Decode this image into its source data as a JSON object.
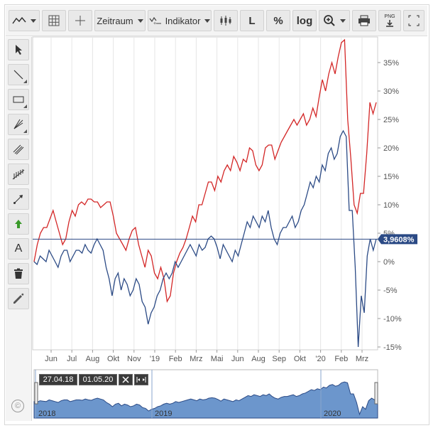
{
  "toolbar": {
    "chart_type_icon": "line-chart-icon",
    "grid_icon": "grid-icon",
    "crosshair_icon": "crosshair-icon",
    "zeitraum_label": "Zeitraum",
    "indikator_label": "Indikator",
    "candles_icon": "candlestick-icon",
    "l_label": "L",
    "percent_label": "%",
    "log_label": "log",
    "zoom_icon": "zoom-icon",
    "print_icon": "print-icon",
    "png_label": "PNG",
    "fullscreen_icon": "fullscreen-icon"
  },
  "sidebar": {
    "items": [
      {
        "icon": "cursor-icon"
      },
      {
        "icon": "line-tool-icon"
      },
      {
        "icon": "rectangle-tool-icon"
      },
      {
        "icon": "fan-tool-icon"
      },
      {
        "icon": "channel-tool-icon"
      },
      {
        "icon": "fibonacci-tool-icon"
      },
      {
        "icon": "arrow-tool-icon"
      },
      {
        "icon": "up-arrow-icon"
      },
      {
        "icon": "text-tool-icon",
        "label": "A"
      },
      {
        "icon": "trash-icon"
      },
      {
        "icon": "pencil-icon"
      }
    ],
    "copyright": "©"
  },
  "navigator": {
    "from_date": "27.04.18",
    "to_date": "01.05.20",
    "year_labels": [
      "2018",
      "2019",
      "2020"
    ]
  },
  "chart_data": {
    "type": "line",
    "x_labels": [
      "Jun",
      "Jul",
      "Aug",
      "Okt",
      "Nov",
      "'19",
      "Feb",
      "Mrz",
      "Mai",
      "Jun",
      "Aug",
      "Sep",
      "Okt",
      "'20",
      "Feb",
      "Mrz"
    ],
    "y_ticks": [
      "35%",
      "30%",
      "25%",
      "20%",
      "15%",
      "10%",
      "5%",
      "0%",
      "-5%",
      "-10%",
      "-15%"
    ],
    "ylim": [
      -15.5,
      39.5
    ],
    "current_value_label": "3,9608%",
    "current_value": 3.9608,
    "grid": "vertical",
    "series": [
      {
        "color": "#d32626",
        "values": [
          0,
          3,
          5,
          6,
          6,
          7.5,
          9,
          7,
          5,
          3,
          4,
          7,
          9,
          8,
          10,
          10.5,
          10,
          11,
          11,
          10.5,
          10.5,
          9.5,
          10,
          10.5,
          10.5,
          8,
          5,
          4,
          3,
          2,
          4,
          5.5,
          6,
          3,
          1,
          -1,
          2,
          1,
          -2,
          -3,
          -1,
          -3,
          -7,
          -6,
          -2,
          0,
          1.5,
          2.5,
          4,
          6,
          8,
          7,
          10,
          10,
          12,
          14,
          14,
          12.5,
          15,
          14,
          16,
          17,
          16,
          18.5,
          17.5,
          16,
          18,
          17.5,
          20,
          19.5,
          17,
          16,
          17,
          20,
          20.5,
          20.5,
          18,
          19.5,
          21,
          22,
          23,
          24,
          25,
          24,
          25,
          26,
          24,
          25,
          27,
          25.5,
          29,
          32,
          30,
          33,
          35,
          33,
          36,
          38.5,
          39,
          25,
          18,
          10,
          8.5,
          12,
          12,
          19,
          28,
          26,
          28
        ]
      },
      {
        "color": "#2b4a85",
        "values": [
          0,
          -0.5,
          1,
          0.5,
          0,
          2,
          1,
          0,
          -1,
          1,
          2,
          2,
          0,
          1,
          2,
          2,
          1.5,
          3,
          2,
          1.5,
          3,
          4,
          3,
          2,
          -1,
          -3,
          -6,
          -3,
          -2,
          -5,
          -3,
          -4,
          -6,
          -5,
          -3,
          -4,
          -7,
          -8,
          -11,
          -9,
          -8,
          -6,
          -5,
          -3,
          -2,
          -3,
          -2,
          0,
          -1,
          0,
          1,
          2,
          3,
          2,
          1,
          3,
          2,
          2.5,
          4,
          4.5,
          4,
          2.5,
          0.5,
          3,
          2,
          1,
          0,
          2,
          1,
          3,
          5,
          7,
          6,
          8,
          7,
          6,
          8,
          7,
          9,
          6,
          4,
          3,
          5,
          6,
          6,
          7,
          8,
          6,
          7,
          9,
          10,
          12,
          14,
          13,
          15,
          14,
          17,
          16,
          19,
          20,
          18,
          19,
          22,
          23,
          22,
          9,
          9,
          -1,
          -15,
          -6,
          -9,
          1,
          4,
          2,
          4
        ]
      }
    ]
  }
}
